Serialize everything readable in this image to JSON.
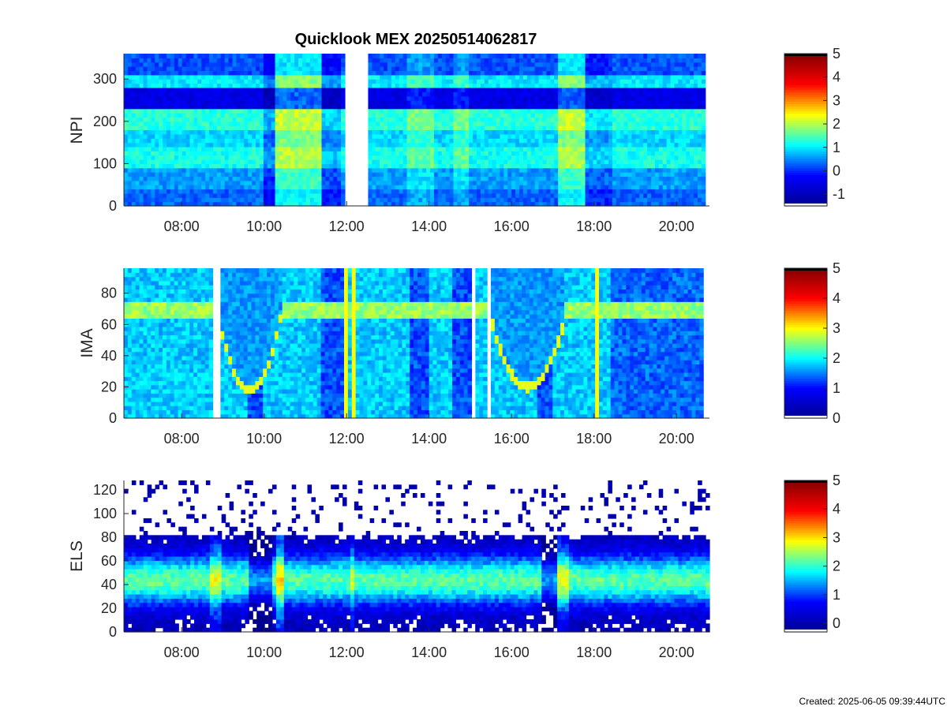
{
  "footer": {
    "created": "Created: 2025-06-05 09:39:44UTC"
  },
  "colors": {
    "jet": [
      "#00008f",
      "#0000ff",
      "#00ffff",
      "#ffff00",
      "#ff0000",
      "#800000"
    ],
    "top": "#000000"
  },
  "chart_data": [
    {
      "type": "heatmap",
      "title": "Quicklook MEX 20250514062817",
      "ylabel": "NPI",
      "ylim": [
        0,
        360
      ],
      "yticks": [
        0,
        100,
        200,
        300
      ],
      "xticks": [
        "08:00",
        "10:00",
        "12:00",
        "14:00",
        "16:00",
        "18:00",
        "20:00"
      ],
      "xlim_hours": [
        6.6,
        20.8
      ],
      "data_end_hours": 20.7,
      "gaps_hours": [
        [
          12.0,
          12.55
        ]
      ],
      "colorbar": {
        "range": [
          -1.5,
          5
        ],
        "ticks": [
          -1,
          0,
          1,
          2,
          3,
          4,
          5
        ]
      },
      "bands": [
        {
          "y": [
            0,
            45
          ],
          "level": 0.3
        },
        {
          "y": [
            45,
            90
          ],
          "level": 0.6
        },
        {
          "y": [
            90,
            140
          ],
          "level": 1.2
        },
        {
          "y": [
            140,
            185
          ],
          "level": 0.9
        },
        {
          "y": [
            185,
            230
          ],
          "level": 1.3
        },
        {
          "y": [
            230,
            280
          ],
          "level": -0.5
        },
        {
          "y": [
            280,
            315
          ],
          "level": 1.0
        },
        {
          "y": [
            315,
            360
          ],
          "level": 0.2
        }
      ],
      "events": [
        {
          "t": [
            10.0,
            10.3
          ],
          "delta": -0.6
        },
        {
          "t": [
            10.3,
            11.4
          ],
          "delta": 0.8
        },
        {
          "t": [
            11.4,
            11.9
          ],
          "delta": -0.4
        },
        {
          "t": [
            13.5,
            14.1
          ],
          "delta": 0.4
        },
        {
          "t": [
            14.6,
            15.0
          ],
          "delta": 0.4
        },
        {
          "t": [
            17.1,
            17.8
          ],
          "delta": 0.8
        },
        {
          "t": [
            17.8,
            18.4
          ],
          "delta": -0.3
        }
      ]
    },
    {
      "type": "heatmap",
      "title": "",
      "ylabel": "IMA",
      "ylim": [
        0,
        96
      ],
      "yticks": [
        0,
        20,
        40,
        60,
        80
      ],
      "xticks": [
        "08:00",
        "10:00",
        "12:00",
        "14:00",
        "16:00",
        "18:00",
        "20:00"
      ],
      "xlim_hours": [
        6.6,
        20.8
      ],
      "data_end_hours": 20.65,
      "gaps_hours": [
        [
          8.8,
          8.9
        ],
        [
          15.05,
          15.15
        ],
        [
          15.4,
          15.5
        ]
      ],
      "colorbar": {
        "range": [
          0,
          5
        ],
        "ticks": [
          0,
          1,
          2,
          3,
          4,
          5
        ]
      },
      "background_level": 1.8,
      "ridge": {
        "y": [
          64,
          76
        ],
        "level": 2.6
      },
      "dropouts": [
        {
          "t": [
            8.9,
            10.4
          ],
          "floor": 18,
          "level": 2.9
        },
        {
          "t": [
            15.5,
            17.3
          ],
          "floor": 20,
          "level": 2.9
        }
      ],
      "dim_intervals": [
        {
          "t": [
            9.6,
            10.0
          ],
          "level": 1.3
        },
        {
          "t": [
            11.4,
            11.9
          ],
          "level": 1.3
        },
        {
          "t": [
            13.5,
            14.0
          ],
          "level": 1.3
        },
        {
          "t": [
            14.6,
            15.0
          ],
          "level": 1.3
        },
        {
          "t": [
            16.6,
            17.0
          ],
          "level": 1.3
        },
        {
          "t": [
            18.4,
            20.65
          ],
          "level": 1.4
        }
      ],
      "spikes": [
        {
          "t": [
            11.95,
            12.05
          ],
          "level": 3.0
        },
        {
          "t": [
            12.1,
            12.2
          ],
          "level": 3.0
        },
        {
          "t": [
            18.05,
            18.15
          ],
          "level": 3.0
        }
      ]
    },
    {
      "type": "heatmap",
      "title": "",
      "ylabel": "ELS",
      "ylim": [
        0,
        128
      ],
      "yticks": [
        0,
        20,
        40,
        60,
        80,
        100,
        120
      ],
      "xticks": [
        "08:00",
        "10:00",
        "12:00",
        "14:00",
        "16:00",
        "18:00",
        "20:00"
      ],
      "xlim_hours": [
        6.6,
        20.8
      ],
      "data_end_hours": 20.8,
      "colorbar": {
        "range": [
          -0.3,
          5
        ],
        "ticks": [
          0,
          1,
          2,
          3,
          4,
          5
        ]
      },
      "profile": {
        "peak_y": 44,
        "width": 22,
        "peak_level": 2.2,
        "upper_edge": 82
      },
      "enhancements": [
        {
          "t": [
            8.7,
            8.95
          ],
          "delta": 0.6
        },
        {
          "t": [
            10.25,
            10.5
          ],
          "delta": 0.9
        },
        {
          "t": [
            12.05,
            12.2
          ],
          "delta": 0.5
        },
        {
          "t": [
            17.1,
            17.4
          ],
          "delta": 0.6
        }
      ],
      "dropouts": [
        {
          "t": [
            9.6,
            10.2
          ],
          "delta": -0.8
        },
        {
          "t": [
            16.7,
            17.1
          ],
          "delta": -0.8
        }
      ]
    }
  ]
}
